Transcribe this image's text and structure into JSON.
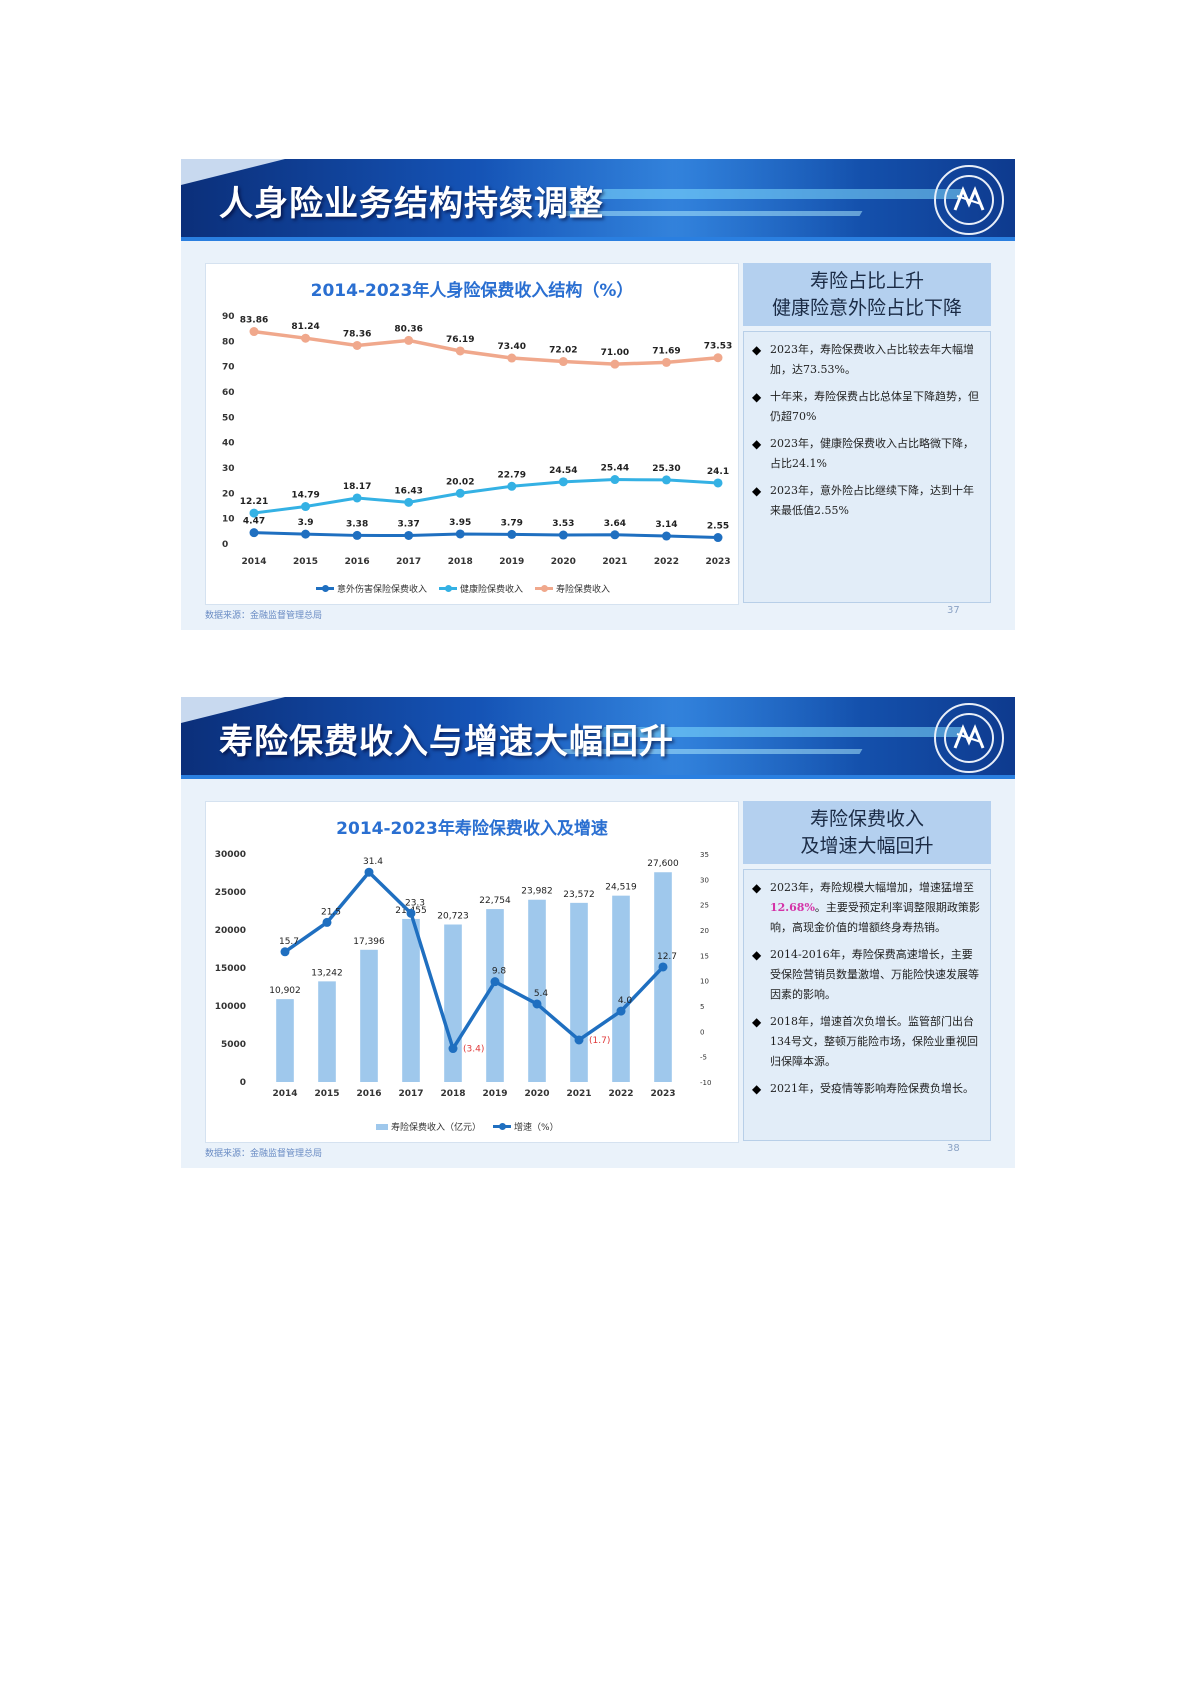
{
  "slides": [
    {
      "banner_title": "人身险业务结构持续调整",
      "chart_title": "2014-2023年人身险保费收入结构（%）",
      "side_title_line1": "寿险占比上升",
      "side_title_line2": "健康险意外险占比下降",
      "bullets": [
        "2023年，寿险保费收入占比较去年大幅增加，达73.53%。",
        "十年来，寿险保费占比总体呈下降趋势，但仍超70%",
        "2023年，健康险保费收入占比略微下降，占比24.1%",
        "2023年，意外险占比继续下降，达到十年来最低值2.55%"
      ],
      "source": "数据来源：金融监督管理总局",
      "page_number": "37"
    },
    {
      "banner_title": "寿险保费收入与增速大幅回升",
      "chart_title": "2014-2023年寿险保费收入及增速",
      "side_title_line1": "寿险保费收入",
      "side_title_line2": "及增速大幅回升",
      "bullets": [
        {
          "pre": "2023年，寿险规模大幅增加，增速猛增至",
          "highlight": "12.68%",
          "post": "。主要受预定利率调整限期政策影响，高现金价值的增额终身寿热销。"
        },
        {
          "pre": "2014-2016年，寿险保费高速增长，主要受保险营销员数量激增、万能险快速发展等因素的影响。",
          "highlight": "",
          "post": ""
        },
        {
          "pre": "2018年，增速首次负增长。监管部门出台134号文，整顿万能险市场，保险业重视回归保障本源。",
          "highlight": "",
          "post": ""
        },
        {
          "pre": "2021年，受疫情等影响寿险保费负增长。",
          "highlight": "",
          "post": ""
        }
      ],
      "source": "数据来源：金融监督管理总局",
      "page_number": "38"
    }
  ],
  "colors": {
    "life": "#f0a88c",
    "health": "#34b1e4",
    "accident": "#1f6fc0",
    "bar": "#9fc8ec",
    "growth": "#1f6fc0",
    "negative_label": "#e03a3a",
    "banner": "#1553b5"
  },
  "chart_data": [
    {
      "type": "line",
      "title": "2014-2023年人身险保费收入结构（%）",
      "categories": [
        "2014",
        "2015",
        "2016",
        "2017",
        "2018",
        "2019",
        "2020",
        "2021",
        "2022",
        "2023"
      ],
      "y_ticks": [
        "0",
        "10",
        "20",
        "30",
        "40",
        "50",
        "60",
        "70",
        "80",
        "90"
      ],
      "ylim": [
        0,
        90
      ],
      "series": [
        {
          "name": "意外伤害保险保费收入",
          "values": [
            4.47,
            3.9,
            3.38,
            3.37,
            3.95,
            3.79,
            3.53,
            3.64,
            3.14,
            2.55
          ],
          "labels": [
            "4.47",
            "3.9",
            "3.38",
            "3.37",
            "3.95",
            "3.79",
            "3.53",
            "3.64",
            "3.14",
            "2.55"
          ]
        },
        {
          "name": "健康险保费收入",
          "values": [
            12.21,
            14.79,
            18.17,
            16.43,
            20.02,
            22.79,
            24.54,
            25.44,
            25.3,
            24.1
          ],
          "labels": [
            "12.21",
            "14.79",
            "18.17",
            "16.43",
            "20.02",
            "22.79",
            "24.54",
            "25.44",
            "25.30",
            "24.1"
          ]
        },
        {
          "name": "寿险保费收入",
          "values": [
            83.86,
            81.24,
            78.36,
            80.36,
            76.19,
            73.4,
            72.02,
            71.0,
            71.69,
            73.53
          ],
          "labels": [
            "83.86",
            "81.24",
            "78.36",
            "80.36",
            "76.19",
            "73.40",
            "72.02",
            "71.00",
            "71.69",
            "73.53"
          ]
        }
      ],
      "legend_position": "bottom"
    },
    {
      "type": "bar",
      "title": "2014-2023年寿险保费收入及增速",
      "categories": [
        "2014",
        "2015",
        "2016",
        "2017",
        "2018",
        "2019",
        "2020",
        "2021",
        "2022",
        "2023"
      ],
      "y_left_ticks": [
        "0",
        "5000",
        "10000",
        "15000",
        "20000",
        "25000",
        "30000"
      ],
      "y_right_ticks": [
        "-10",
        "-5",
        "0",
        "5",
        "10",
        "15",
        "20",
        "25",
        "30",
        "35"
      ],
      "ylim_left": [
        0,
        30000
      ],
      "ylim_right": [
        -10,
        35
      ],
      "series": [
        {
          "name": "寿险保费收入（亿元）",
          "kind": "bar",
          "axis": "left",
          "values": [
            10902,
            13242,
            17396,
            21455,
            20723,
            22754,
            23982,
            23572,
            24519,
            27600
          ],
          "labels": [
            "10,902",
            "13,242",
            "17,396",
            "21,455",
            "20,723",
            "22,754",
            "23,982",
            "23,572",
            "24,519",
            "27,600"
          ]
        },
        {
          "name": "增速（%）",
          "kind": "line",
          "axis": "right",
          "values": [
            15.7,
            21.5,
            31.4,
            23.3,
            -3.4,
            9.8,
            5.4,
            -1.7,
            4.0,
            12.7
          ],
          "labels": [
            "15.7",
            "21.5",
            "31.4",
            "23.3",
            "(3.4)",
            "9.8",
            "5.4",
            "(1.7)",
            "4.0",
            "12.7"
          ]
        }
      ],
      "legend_position": "bottom"
    }
  ]
}
